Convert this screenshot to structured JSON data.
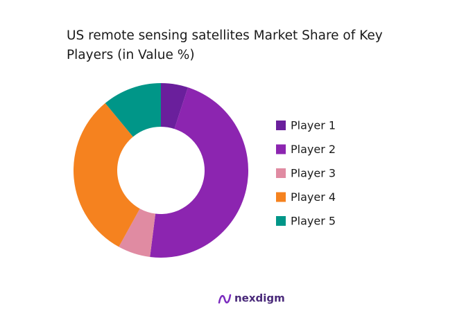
{
  "chart_data": {
    "type": "donut",
    "title": "US remote sensing satellites Market Share of Key Players (in Value %)",
    "categories": [
      "Player 1",
      "Player 2",
      "Player 3",
      "Player 4",
      "Player 5"
    ],
    "values": [
      5,
      47,
      6,
      31,
      11
    ],
    "colors": [
      "#6a1f9c",
      "#8c25b0",
      "#e08ba2",
      "#f5821f",
      "#009688"
    ]
  },
  "brand": "nexdigm"
}
